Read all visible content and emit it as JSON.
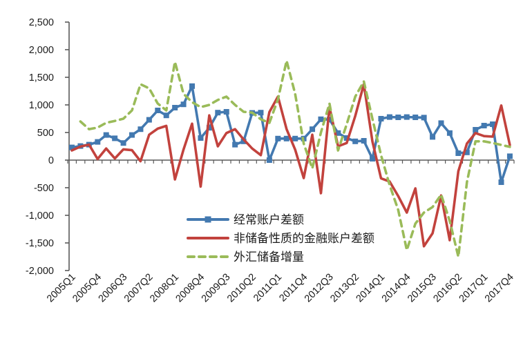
{
  "chart_data": {
    "type": "line",
    "title": "",
    "xlabel": "",
    "ylabel": "",
    "grid": false,
    "legend_position": "inside-bottom-center",
    "ylim": [
      -2000,
      2500
    ],
    "ytick_step": 500,
    "ytick_labels": [
      "2,500",
      "2,000",
      "1,500",
      "1,000",
      "500",
      "0",
      "-500",
      "-1,000",
      "-1,500",
      "-2,000"
    ],
    "x_label_every_n": 3,
    "x_labels_shown": [
      "2005Q1",
      "2005Q4",
      "2006Q3",
      "2007Q2",
      "2008Q1",
      "2008Q4",
      "2009Q3",
      "2010Q2",
      "2011Q1",
      "2011Q4",
      "2012Q3",
      "2013Q2",
      "2014Q1",
      "2014Q4",
      "2015Q3",
      "2016Q2",
      "2017Q1",
      "2017Q4"
    ],
    "categories": [
      "2005Q1",
      "2005Q2",
      "2005Q3",
      "2005Q4",
      "2006Q1",
      "2006Q2",
      "2006Q3",
      "2006Q4",
      "2007Q1",
      "2007Q2",
      "2007Q3",
      "2007Q4",
      "2008Q1",
      "2008Q2",
      "2008Q3",
      "2008Q4",
      "2009Q1",
      "2009Q2",
      "2009Q3",
      "2009Q4",
      "2010Q1",
      "2010Q2",
      "2010Q3",
      "2010Q4",
      "2011Q1",
      "2011Q2",
      "2011Q3",
      "2011Q4",
      "2012Q1",
      "2012Q2",
      "2012Q3",
      "2012Q4",
      "2013Q1",
      "2013Q2",
      "2013Q3",
      "2013Q4",
      "2014Q1",
      "2014Q2",
      "2014Q3",
      "2014Q4",
      "2015Q1",
      "2015Q2",
      "2015Q3",
      "2015Q4",
      "2016Q1",
      "2016Q2",
      "2016Q3",
      "2016Q4",
      "2017Q1",
      "2017Q2",
      "2017Q3",
      "2017Q4"
    ],
    "series": [
      {
        "name": "经常账户差额",
        "color": "#4379B0",
        "line_style": "solid",
        "marker": "square",
        "values": [
          230,
          255,
          280,
          330,
          455,
          395,
          310,
          455,
          560,
          730,
          900,
          810,
          950,
          1010,
          1340,
          400,
          585,
          860,
          875,
          280,
          340,
          855,
          860,
          0,
          390,
          390,
          390,
          390,
          560,
          740,
          735,
          490,
          400,
          340,
          350,
          25,
          750,
          780,
          775,
          780,
          775,
          770,
          420,
          670,
          490,
          125,
          140,
          550,
          625,
          650,
          -400,
          70
        ]
      },
      {
        "name": "非储备性质的金融账户差额",
        "color": "#C2423D",
        "line_style": "solid",
        "marker": "none",
        "values": [
          175,
          245,
          280,
          20,
          210,
          30,
          195,
          180,
          -20,
          460,
          570,
          620,
          -350,
          190,
          660,
          -480,
          810,
          250,
          490,
          560,
          375,
          210,
          90,
          870,
          1150,
          560,
          190,
          -325,
          460,
          -600,
          960,
          250,
          310,
          800,
          1375,
          340,
          -330,
          -387,
          -650,
          -950,
          -512,
          -1560,
          -1325,
          -640,
          -1450,
          -200,
          300,
          490,
          435,
          425,
          990,
          275
        ]
      },
      {
        "name": "外汇储备增量",
        "color": "#9ABB59",
        "line_style": "dashed",
        "marker": "none",
        "values": [
          null,
          700,
          560,
          590,
          675,
          710,
          750,
          900,
          1375,
          1300,
          1025,
          900,
          1780,
          1200,
          1050,
          960,
          1000,
          1090,
          1150,
          1000,
          875,
          860,
          740,
          675,
          1100,
          1800,
          1200,
          300,
          -150,
          500,
          1025,
          175,
          650,
          1150,
          1425,
          750,
          90,
          -450,
          -900,
          -1630,
          -1150,
          -950,
          -850,
          -625,
          -1100,
          -1750,
          -400,
          340,
          340,
          310,
          275,
          240
        ]
      }
    ],
    "axis_color": "#595959",
    "text_color": "#1a1a1a"
  }
}
